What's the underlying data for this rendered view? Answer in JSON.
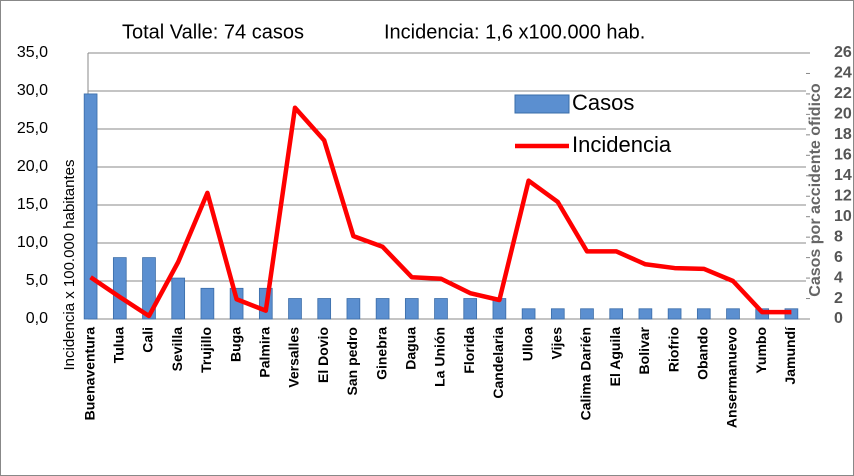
{
  "chart_data": {
    "type": "bar-line",
    "title": "Total Valle: 74 casos",
    "subtitle": "Incidencia: 1,6  x100.000 hab.",
    "y_label": "Incidencia  x 100.000 habitantes",
    "y2_label": "Casos por accidente ofidico",
    "categories": [
      "Buenaventura",
      "Tulua",
      "Cali",
      "Sevilla",
      "Trujillo",
      "Buga",
      "Palmira",
      "Versalles",
      "El Dovio",
      "San pedro",
      "Ginebra",
      "Dagua",
      "La Unión",
      "Florida",
      "Candelaria",
      "Ulloa",
      "Vijes",
      "Calima Darién",
      "El Aguila",
      "Bolivar",
      "Riofrio",
      "Obando",
      "Ansermanuevo",
      "Yumbo",
      "Jamundí"
    ],
    "series": [
      {
        "name": "Casos",
        "type": "bar",
        "axis": "y2",
        "color": "#5b8fd0",
        "values": [
          22,
          6,
          6,
          4,
          3,
          3,
          3,
          2,
          2,
          2,
          2,
          2,
          2,
          2,
          2,
          1,
          1,
          1,
          1,
          1,
          1,
          1,
          1,
          1,
          1
        ]
      },
      {
        "name": "Incidencia",
        "type": "line",
        "axis": "y",
        "color": "#ff0000",
        "values": [
          5.5,
          2.9,
          0.4,
          7.5,
          16.6,
          2.6,
          1.1,
          27.8,
          23.5,
          10.9,
          9.5,
          5.5,
          5.3,
          3.4,
          2.5,
          18.2,
          15.4,
          8.9,
          8.9,
          7.2,
          6.7,
          6.6,
          5.0,
          0.9,
          0.9
        ]
      }
    ],
    "ylim": [
      0,
      35
    ],
    "yticks": [
      {
        "value": 0,
        "label": "0,0"
      },
      {
        "value": 5,
        "label": "5,0"
      },
      {
        "value": 10,
        "label": "10,0"
      },
      {
        "value": 15,
        "label": "15,0"
      },
      {
        "value": 20,
        "label": "20,0"
      },
      {
        "value": 25,
        "label": "25,0"
      },
      {
        "value": 30,
        "label": "30,0"
      },
      {
        "value": 35,
        "label": "35,0"
      }
    ],
    "y2lim": [
      0,
      26
    ],
    "y2ticks": [
      0,
      2,
      4,
      6,
      8,
      10,
      12,
      14,
      16,
      18,
      20,
      22,
      24,
      26
    ],
    "grid": true
  }
}
